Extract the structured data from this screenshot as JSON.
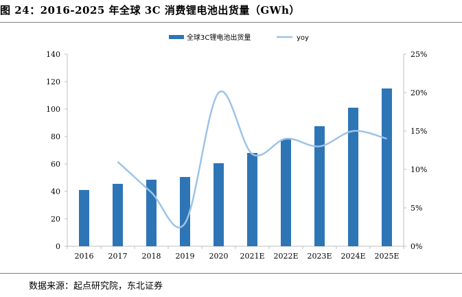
{
  "title": "图 24：2016-2025 年全球 3C 消费锂电池出货量（GWh）",
  "source": "数据来源：起点研究院，东北证券",
  "chart_data": {
    "type": "bar",
    "categories": [
      "2016",
      "2017",
      "2018",
      "2019",
      "2020",
      "2021E",
      "2022E",
      "2023E",
      "2024E",
      "2025E"
    ],
    "series": [
      {
        "name": "全球3C锂电池出货量",
        "type": "bar",
        "axis": "left",
        "values": [
          41,
          45.5,
          48.5,
          50.5,
          60.5,
          68,
          78,
          87.5,
          101,
          115
        ]
      },
      {
        "name": "yoy",
        "type": "line",
        "axis": "right",
        "values": [
          null,
          0.11,
          0.07,
          0.03,
          0.2,
          0.12,
          0.14,
          0.13,
          0.15,
          0.14
        ]
      }
    ],
    "y_left": {
      "ylim": [
        0,
        140
      ],
      "ticks": [
        "0",
        "20",
        "40",
        "60",
        "80",
        "100",
        "120",
        "140"
      ]
    },
    "y_right": {
      "ylim": [
        0,
        0.25
      ],
      "ticks": [
        "0%",
        "5%",
        "10%",
        "15%",
        "20%",
        "25%"
      ]
    },
    "legend": "top-center",
    "grid": false,
    "colors": {
      "bar": "#2e75b6",
      "line": "#9dc3e6",
      "axis": "#bfbfbf"
    }
  }
}
